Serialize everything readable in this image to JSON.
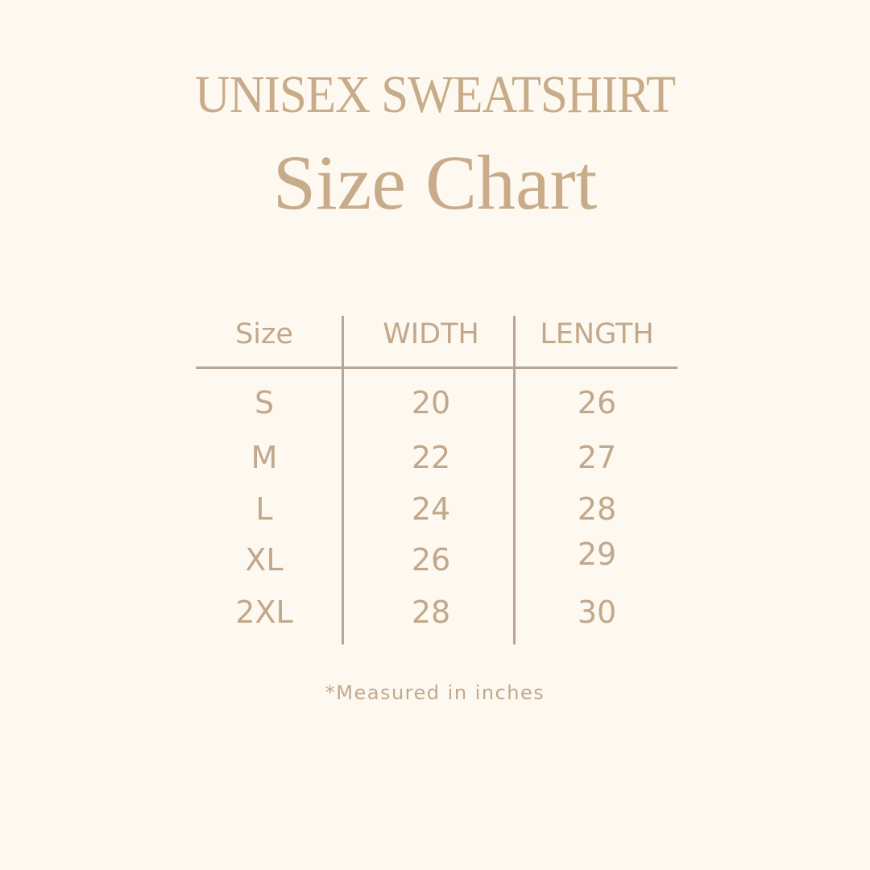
{
  "title": "UNISEX SWEATSHIRT",
  "subtitle": "Size Chart",
  "table": {
    "headers": [
      "Size",
      "WIDTH",
      "LENGTH"
    ],
    "rows": [
      [
        "S",
        "20",
        "26"
      ],
      [
        "M",
        "22",
        "27"
      ],
      [
        "L",
        "24",
        "28"
      ],
      [
        "XL",
        "26",
        "29"
      ],
      [
        "2XL",
        "28",
        "30"
      ]
    ]
  },
  "footnote": "*Measured in inches",
  "colors": {
    "background": "#fdf8f0",
    "text": "#c2a88b",
    "lines": "#b9a593"
  }
}
